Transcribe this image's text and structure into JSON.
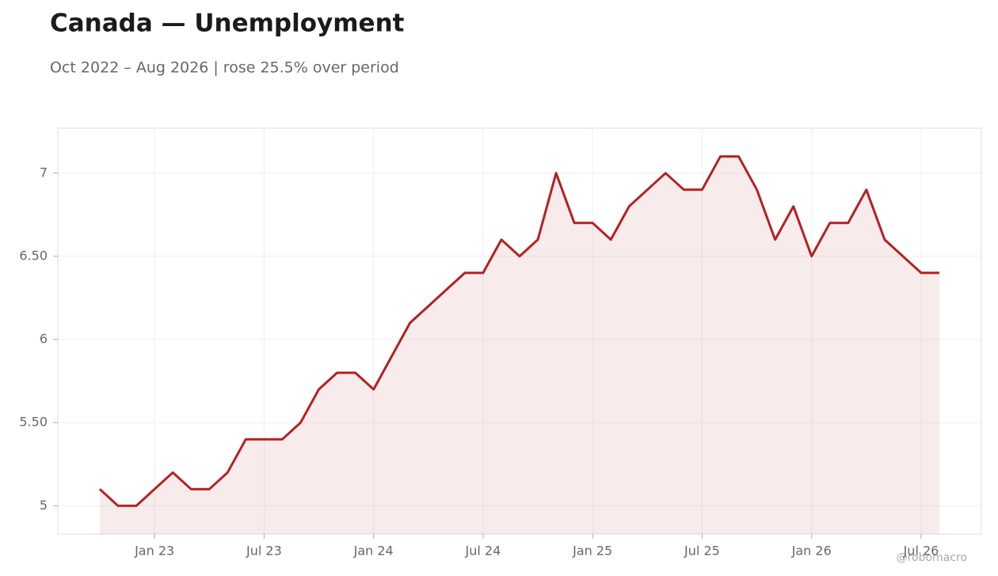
{
  "chart_data": {
    "type": "line",
    "title": "Canada — Unemployment",
    "subtitle": "Oct 2022 – Aug 2026 | rose 25.5% over period",
    "watermark": "@robomacro",
    "x": [
      "2022-10",
      "2022-11",
      "2022-12",
      "2023-01",
      "2023-02",
      "2023-03",
      "2023-04",
      "2023-05",
      "2023-06",
      "2023-07",
      "2023-08",
      "2023-09",
      "2023-10",
      "2023-11",
      "2023-12",
      "2024-01",
      "2024-02",
      "2024-03",
      "2024-04",
      "2024-05",
      "2024-06",
      "2024-07",
      "2024-08",
      "2024-09",
      "2024-10",
      "2024-11",
      "2024-12",
      "2025-01",
      "2025-02",
      "2025-03",
      "2025-04",
      "2025-05",
      "2025-06",
      "2025-07",
      "2025-08",
      "2025-09",
      "2025-10",
      "2025-11",
      "2025-12",
      "2026-01",
      "2026-02",
      "2026-03",
      "2026-04",
      "2026-05",
      "2026-06",
      "2026-07",
      "2026-08"
    ],
    "series": [
      {
        "name": "Unemployment",
        "color": "#b22222",
        "values": [
          5.1,
          5.0,
          5.0,
          5.1,
          5.2,
          5.1,
          5.1,
          5.2,
          5.4,
          5.4,
          5.4,
          5.5,
          5.7,
          5.8,
          5.8,
          5.7,
          5.9,
          6.1,
          6.2,
          6.3,
          6.4,
          6.4,
          6.6,
          6.5,
          6.6,
          7.0,
          6.7,
          6.7,
          6.6,
          6.8,
          6.9,
          7.0,
          6.9,
          6.9,
          7.1,
          7.1,
          6.9,
          6.6,
          6.8,
          6.5,
          6.7,
          6.7,
          6.9,
          6.6,
          6.5,
          6.4,
          6.4
        ]
      }
    ],
    "xticks": [
      {
        "value": "2023-01",
        "label": "Jan 23"
      },
      {
        "value": "2023-07",
        "label": "Jul 23"
      },
      {
        "value": "2024-01",
        "label": "Jan 24"
      },
      {
        "value": "2024-07",
        "label": "Jul 24"
      },
      {
        "value": "2025-01",
        "label": "Jan 25"
      },
      {
        "value": "2025-07",
        "label": "Jul 25"
      },
      {
        "value": "2026-01",
        "label": "Jan 26"
      },
      {
        "value": "2026-07",
        "label": "Jul 26"
      }
    ],
    "ylim": [
      4.83,
      7.27
    ],
    "yticks": [
      5,
      {
        "value": 5.5,
        "label": "5.50"
      },
      6,
      {
        "value": 6.5,
        "label": "6.50"
      },
      7
    ],
    "grid": true
  }
}
